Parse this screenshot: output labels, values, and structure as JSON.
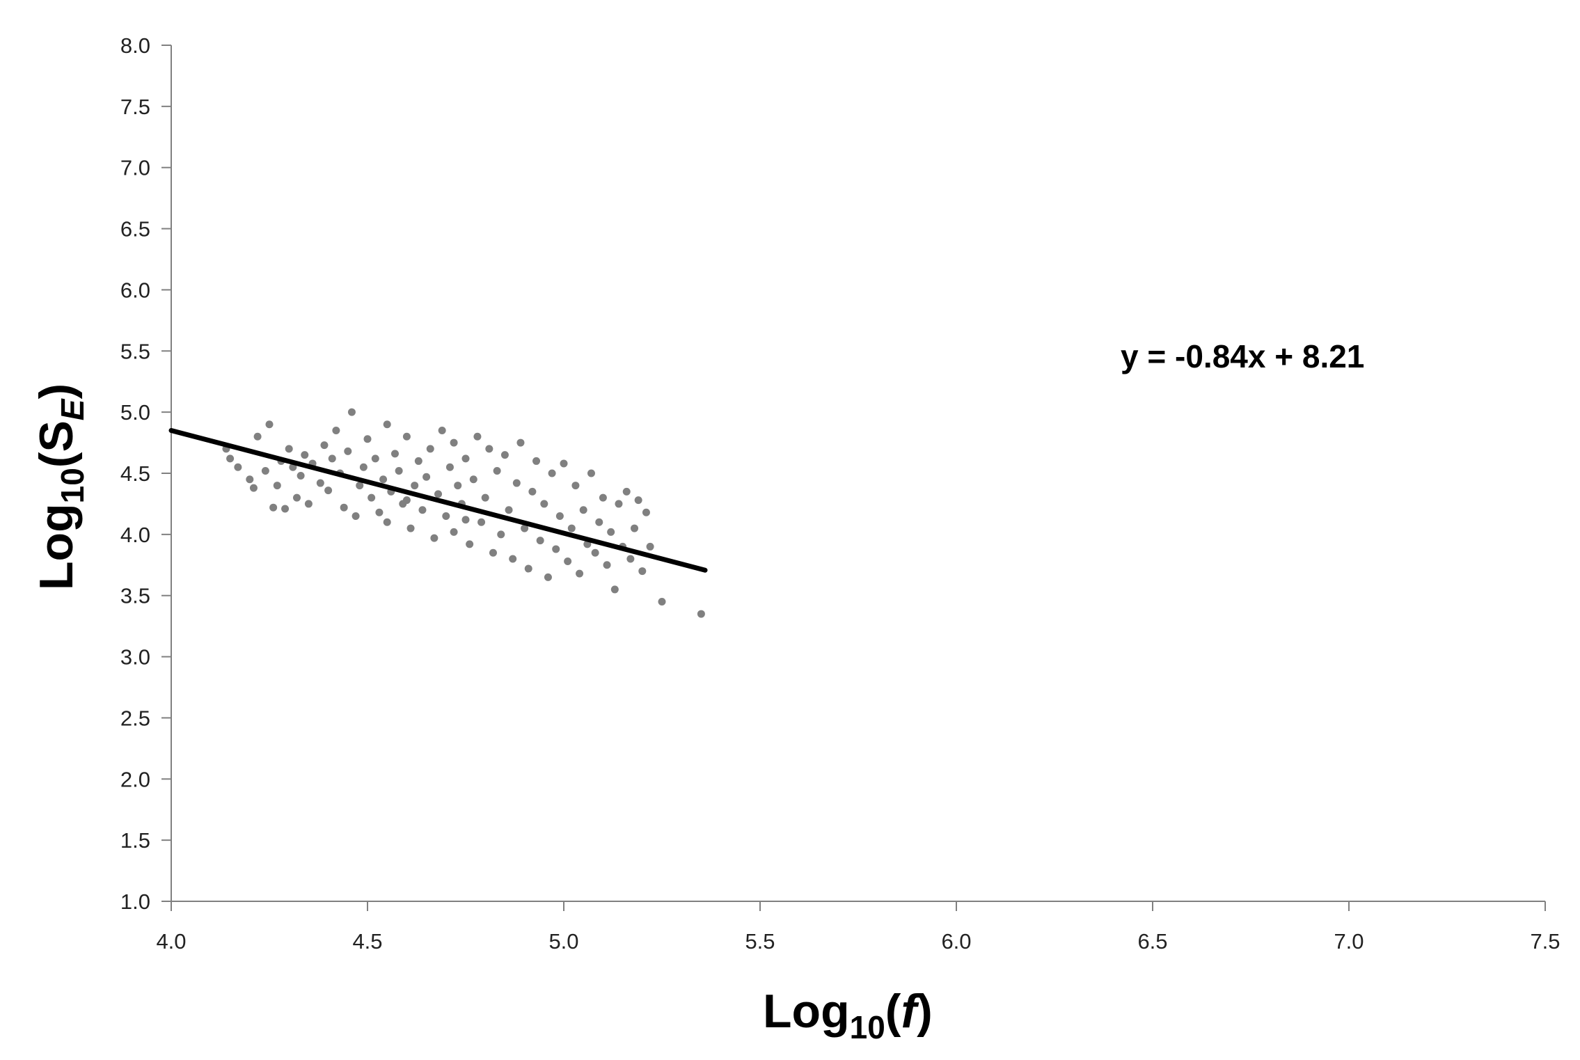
{
  "chart_data": {
    "type": "scatter",
    "xlim": [
      4.0,
      7.5
    ],
    "ylim": [
      1.0,
      8.0
    ],
    "x_ticks": [
      "4.0",
      "4.5",
      "5.0",
      "5.5",
      "6.0",
      "6.5",
      "7.0",
      "7.5"
    ],
    "y_ticks": [
      "1.0",
      "1.5",
      "2.0",
      "2.5",
      "3.0",
      "3.5",
      "4.0",
      "4.5",
      "5.0",
      "5.5",
      "6.0",
      "6.5",
      "7.0",
      "7.5",
      "8.0"
    ],
    "xlabel": {
      "base": "Log",
      "sub": "10",
      "open": "(",
      "var": "f",
      "close": ")"
    },
    "ylabel": {
      "base": "Log",
      "sub": "10",
      "open": "(S",
      "var": "E",
      "close": ")"
    },
    "annotation": "y = -0.84x + 8.21",
    "grid": false,
    "colors": {
      "points": "#808080",
      "trendline": "#000000",
      "axis": "#808080"
    },
    "trendline": {
      "slope": -0.84,
      "intercept": 8.21,
      "x_range": [
        4.0,
        5.36
      ]
    },
    "points": [
      [
        4.14,
        4.7
      ],
      [
        4.15,
        4.62
      ],
      [
        4.17,
        4.55
      ],
      [
        4.2,
        4.45
      ],
      [
        4.21,
        4.38
      ],
      [
        4.22,
        4.8
      ],
      [
        4.24,
        4.52
      ],
      [
        4.25,
        4.9
      ],
      [
        4.26,
        4.22
      ],
      [
        4.27,
        4.4
      ],
      [
        4.28,
        4.6
      ],
      [
        4.29,
        4.21
      ],
      [
        4.3,
        4.7
      ],
      [
        4.31,
        4.55
      ],
      [
        4.32,
        4.3
      ],
      [
        4.33,
        4.48
      ],
      [
        4.34,
        4.65
      ],
      [
        4.35,
        4.25
      ],
      [
        4.36,
        4.58
      ],
      [
        4.38,
        4.42
      ],
      [
        4.39,
        4.73
      ],
      [
        4.4,
        4.36
      ],
      [
        4.41,
        4.62
      ],
      [
        4.42,
        4.85
      ],
      [
        4.43,
        4.5
      ],
      [
        4.44,
        4.22
      ],
      [
        4.45,
        4.68
      ],
      [
        4.46,
        5.0
      ],
      [
        4.47,
        4.15
      ],
      [
        4.48,
        4.4
      ],
      [
        4.49,
        4.55
      ],
      [
        4.5,
        4.78
      ],
      [
        4.51,
        4.3
      ],
      [
        4.52,
        4.62
      ],
      [
        4.53,
        4.18
      ],
      [
        4.54,
        4.45
      ],
      [
        4.55,
        4.9
      ],
      [
        4.55,
        4.1
      ],
      [
        4.56,
        4.35
      ],
      [
        4.57,
        4.66
      ],
      [
        4.58,
        4.52
      ],
      [
        4.59,
        4.25
      ],
      [
        4.6,
        4.8
      ],
      [
        4.61,
        4.05
      ],
      [
        4.62,
        4.4
      ],
      [
        4.63,
        4.6
      ],
      [
        4.64,
        4.2
      ],
      [
        4.65,
        4.47
      ],
      [
        4.66,
        4.7
      ],
      [
        4.67,
        3.97
      ],
      [
        4.68,
        4.33
      ],
      [
        4.69,
        4.85
      ],
      [
        4.7,
        4.15
      ],
      [
        4.71,
        4.55
      ],
      [
        4.72,
        4.02
      ],
      [
        4.72,
        4.75
      ],
      [
        4.73,
        4.4
      ],
      [
        4.74,
        4.25
      ],
      [
        4.75,
        4.62
      ],
      [
        4.76,
        3.92
      ],
      [
        4.77,
        4.45
      ],
      [
        4.78,
        4.8
      ],
      [
        4.79,
        4.1
      ],
      [
        4.8,
        4.3
      ],
      [
        4.81,
        4.7
      ],
      [
        4.82,
        3.85
      ],
      [
        4.83,
        4.52
      ],
      [
        4.84,
        4.0
      ],
      [
        4.85,
        4.65
      ],
      [
        4.86,
        4.2
      ],
      [
        4.87,
        3.8
      ],
      [
        4.88,
        4.42
      ],
      [
        4.89,
        4.75
      ],
      [
        4.9,
        4.05
      ],
      [
        4.91,
        3.72
      ],
      [
        4.92,
        4.35
      ],
      [
        4.93,
        4.6
      ],
      [
        4.94,
        3.95
      ],
      [
        4.95,
        4.25
      ],
      [
        4.96,
        3.65
      ],
      [
        4.97,
        4.5
      ],
      [
        4.98,
        3.88
      ],
      [
        4.99,
        4.15
      ],
      [
        5.0,
        4.58
      ],
      [
        5.01,
        3.78
      ],
      [
        5.02,
        4.05
      ],
      [
        5.03,
        4.4
      ],
      [
        5.04,
        3.68
      ],
      [
        5.05,
        4.2
      ],
      [
        5.06,
        3.92
      ],
      [
        5.07,
        4.5
      ],
      [
        5.08,
        3.85
      ],
      [
        5.09,
        4.1
      ],
      [
        5.1,
        4.3
      ],
      [
        5.11,
        3.75
      ],
      [
        5.12,
        4.02
      ],
      [
        5.13,
        3.55
      ],
      [
        5.14,
        4.25
      ],
      [
        5.15,
        3.9
      ],
      [
        5.16,
        4.35
      ],
      [
        5.17,
        3.8
      ],
      [
        5.18,
        4.05
      ],
      [
        5.19,
        4.28
      ],
      [
        5.2,
        3.7
      ],
      [
        5.21,
        4.18
      ],
      [
        5.22,
        3.9
      ],
      [
        5.25,
        3.45
      ],
      [
        5.35,
        3.35
      ],
      [
        4.6,
        4.28
      ],
      [
        4.75,
        4.12
      ]
    ]
  }
}
